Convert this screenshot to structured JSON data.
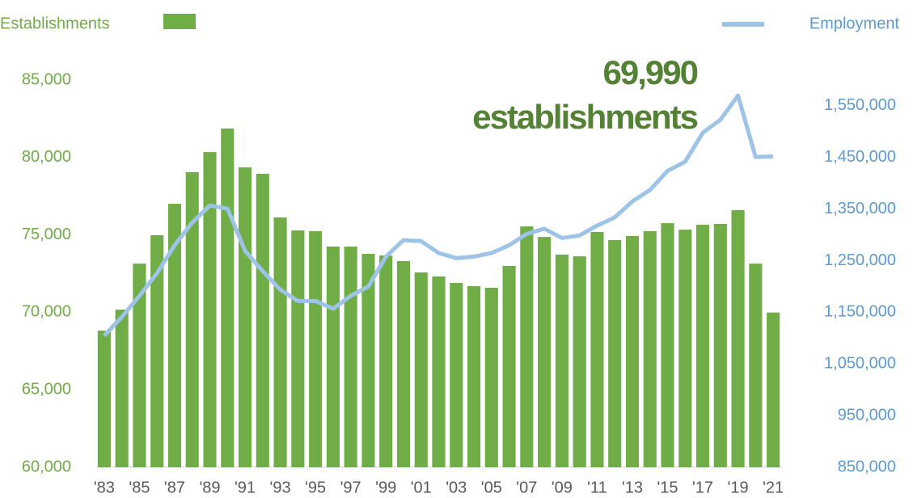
{
  "chart_data": {
    "type": "bar-line",
    "categories": [
      "'83",
      null,
      "'85",
      null,
      "'87",
      null,
      "'89",
      null,
      "'91",
      null,
      "'93",
      null,
      "'95",
      null,
      "'97",
      null,
      "'99",
      null,
      "'01",
      null,
      "'03",
      null,
      "'05",
      null,
      "'07",
      null,
      "'09",
      null,
      "'11",
      null,
      "'13",
      null,
      "'15",
      null,
      "'17",
      null,
      "'19",
      null,
      "'21"
    ],
    "series": [
      {
        "name": "Establishments",
        "type": "bar",
        "color": "#70ad47",
        "values": [
          68820,
          70180,
          73150,
          74980,
          77010,
          79050,
          80350,
          81870,
          79360,
          78950,
          76130,
          75290,
          75240,
          74250,
          74250,
          73780,
          73670,
          73310,
          72580,
          72320,
          71900,
          71690,
          71590,
          73000,
          75550,
          74870,
          73730,
          73620,
          75190,
          74670,
          74930,
          75240,
          75760,
          75340,
          75660,
          75710,
          76600,
          73150,
          69990
        ]
      },
      {
        "name": "Employment",
        "type": "line",
        "axis": "y2",
        "color": "#9dc3e6",
        "values": [
          1105000,
          1141000,
          1182000,
          1226000,
          1280000,
          1324000,
          1357000,
          1351000,
          1269000,
          1230000,
          1194000,
          1172000,
          1172000,
          1157000,
          1182000,
          1200000,
          1258000,
          1290000,
          1288000,
          1265000,
          1255000,
          1258000,
          1265000,
          1280000,
          1302000,
          1312000,
          1294000,
          1299000,
          1318000,
          1334000,
          1365000,
          1387000,
          1424000,
          1442000,
          1498000,
          1523000,
          1570000,
          1451000,
          1452000
        ]
      }
    ],
    "annotation": [
      "69,990",
      "establishments"
    ],
    "ylim": [
      60000,
      85000
    ],
    "yticks": [
      {
        "value": 60000,
        "label": "60,000"
      },
      {
        "value": 65000,
        "label": "65,000"
      },
      {
        "value": 70000,
        "label": "70,000"
      },
      {
        "value": 75000,
        "label": "75,000"
      },
      {
        "value": 80000,
        "label": "80,000"
      },
      {
        "value": 85000,
        "label": "85,000"
      }
    ],
    "y2lim": [
      850000,
      1600000
    ],
    "y2ticks": [
      {
        "value": 850000,
        "label": "850,000"
      },
      {
        "value": 950000,
        "label": "950,000"
      },
      {
        "value": 1050000,
        "label": "1,050,000"
      },
      {
        "value": 1150000,
        "label": "1,150,000"
      },
      {
        "value": 1250000,
        "label": "1,250,000"
      },
      {
        "value": 1350000,
        "label": "1,350,000"
      },
      {
        "value": 1450000,
        "label": "1,450,000"
      },
      {
        "value": 1550000,
        "label": "1,550,000"
      }
    ],
    "grid": false
  }
}
